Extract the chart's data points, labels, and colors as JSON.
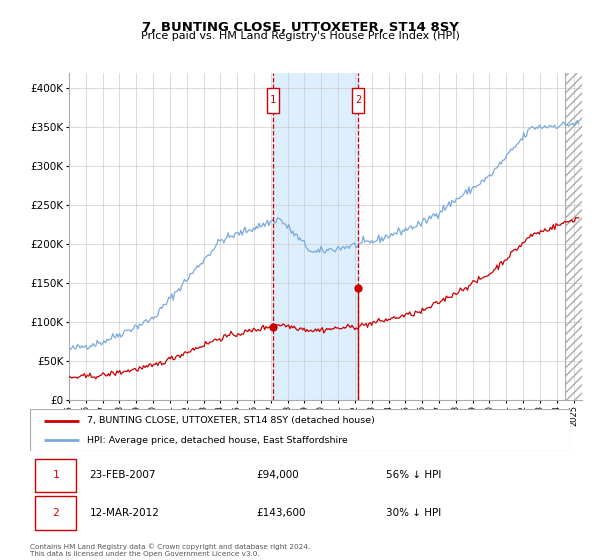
{
  "title": "7, BUNTING CLOSE, UTTOXETER, ST14 8SY",
  "subtitle": "Price paid vs. HM Land Registry's House Price Index (HPI)",
  "legend_line1": "7, BUNTING CLOSE, UTTOXETER, ST14 8SY (detached house)",
  "legend_line2": "HPI: Average price, detached house, East Staffordshire",
  "transaction1_date": "23-FEB-2007",
  "transaction1_price": "£94,000",
  "transaction1_hpi": "56% ↓ HPI",
  "transaction2_date": "12-MAR-2012",
  "transaction2_price": "£143,600",
  "transaction2_hpi": "30% ↓ HPI",
  "transaction1_year": 2007.14,
  "transaction2_year": 2012.19,
  "transaction1_price_val": 94000,
  "transaction2_price_val": 143600,
  "hpi_color": "#7aaadd",
  "property_color": "#cc0000",
  "plot_bg": "#ffffff",
  "shaded_region_color": "#ddeeff",
  "footer_text": "Contains HM Land Registry data © Crown copyright and database right 2024.\nThis data is licensed under the Open Government Licence v3.0.",
  "ylim": [
    0,
    420000
  ],
  "xlim_start": 1995.0,
  "xlim_end": 2025.5,
  "hatch_start": 2024.5,
  "seed": 42
}
